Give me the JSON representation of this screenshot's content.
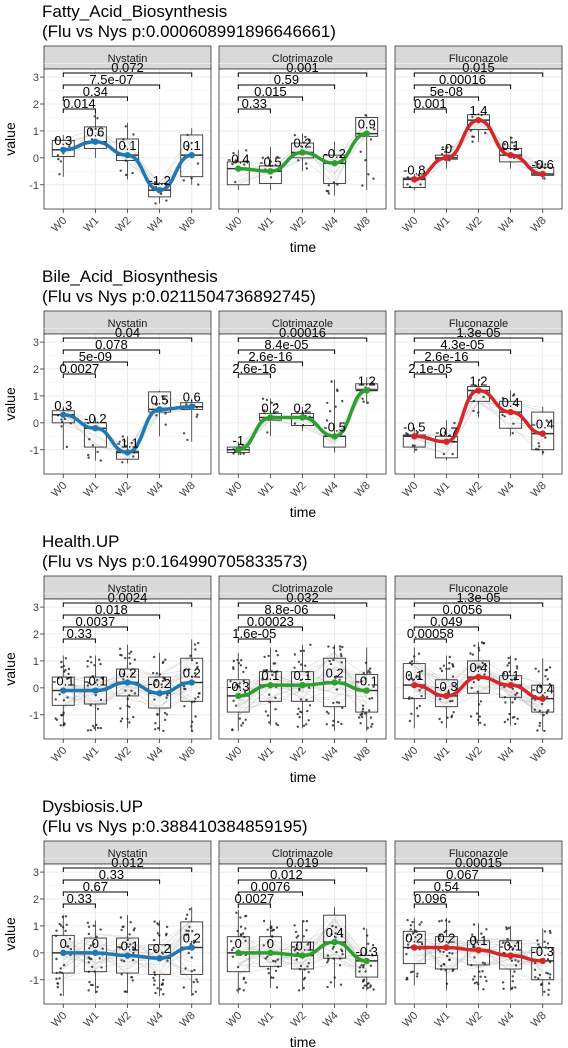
{
  "figure": {
    "xlabel": "time",
    "ylabel": "value",
    "facets": [
      "Nystatin",
      "Clotrimazole",
      "Fluconazole"
    ],
    "colors": {
      "Nystatin": "#1f77b4",
      "Clotrimazole": "#2ca02c",
      "Fluconazole": "#d62728"
    }
  },
  "chart_data": [
    {
      "type": "box",
      "title": "Fatty_Acid_Biosynthesis",
      "subtitle": " (Flu vs Nys p:0.000608991896646661)",
      "categories": [
        "W0",
        "W1",
        "W2",
        "W4",
        "W8"
      ],
      "yticks": [
        -1,
        0,
        1,
        2,
        3
      ],
      "ylim": [
        -1.9,
        3.3
      ],
      "grid": true,
      "panels": [
        {
          "facet": "Nystatin",
          "medians": [
            0.3,
            0.6,
            0.1,
            -1.2,
            0.1
          ],
          "median_labels": [
            "0.3",
            "0.6",
            "0.1",
            "-1.2",
            "0.1"
          ],
          "boxes": [
            [
              0.05,
              0.65
            ],
            [
              0.35,
              1.15
            ],
            [
              -0.1,
              0.7
            ],
            [
              -1.45,
              -0.95
            ],
            [
              -0.7,
              0.85
            ]
          ],
          "whiskers": [
            [
              -0.7,
              0.85
            ],
            [
              0.0,
              1.7
            ],
            [
              -0.8,
              1.3
            ],
            [
              -1.7,
              -0.9
            ],
            [
              -1.0,
              1.1
            ]
          ],
          "pvalues": [
            "0.014",
            "0.34",
            "7.5e-07",
            "0.072"
          ]
        },
        {
          "facet": "Clotrimazole",
          "medians": [
            -0.4,
            -0.5,
            0.2,
            -0.2,
            0.9
          ],
          "median_labels": [
            "-0.4",
            "-0.5",
            "0.2",
            "-0.2",
            "0.9"
          ],
          "boxes": [
            [
              -1.0,
              -0.15
            ],
            [
              -0.95,
              -0.3
            ],
            [
              0.0,
              0.55
            ],
            [
              -0.95,
              0.1
            ],
            [
              0.8,
              1.5
            ]
          ],
          "whiskers": [
            [
              -1.2,
              0.3
            ],
            [
              -1.2,
              0.4
            ],
            [
              -0.5,
              0.9
            ],
            [
              -1.4,
              0.6
            ],
            [
              -1.2,
              1.6
            ]
          ],
          "pvalues": [
            "0.33",
            "0.015",
            "0.59",
            "0.001"
          ]
        },
        {
          "facet": "Fluconazole",
          "medians": [
            -0.8,
            0.0,
            1.4,
            0.1,
            -0.6
          ],
          "median_labels": [
            "-0.8",
            "-0",
            "1.4",
            "0.1",
            "-0.6"
          ],
          "boxes": [
            [
              -1.1,
              -0.75
            ],
            [
              -0.05,
              0.1
            ],
            [
              1.05,
              1.6
            ],
            [
              -0.15,
              0.35
            ],
            [
              -0.65,
              -0.35
            ]
          ],
          "whiskers": [
            [
              -1.2,
              -0.6
            ],
            [
              -0.4,
              0.5
            ],
            [
              0.6,
              1.65
            ],
            [
              -0.4,
              0.8
            ],
            [
              -0.8,
              -0.1
            ]
          ],
          "pvalues": [
            "0.001",
            "5e-08",
            "0.00016",
            "0.015"
          ]
        }
      ]
    },
    {
      "type": "box",
      "title": "Bile_Acid_Biosynthesis",
      "subtitle": " (Flu vs Nys p:0.0211504736892745)",
      "categories": [
        "W0",
        "W1",
        "W2",
        "W4",
        "W8"
      ],
      "yticks": [
        -1,
        0,
        1,
        2,
        3
      ],
      "ylim": [
        -1.9,
        3.3
      ],
      "grid": true,
      "panels": [
        {
          "facet": "Nystatin",
          "medians": [
            0.3,
            -0.2,
            -1.1,
            0.5,
            0.6
          ],
          "median_labels": [
            "0.3",
            "-0.2",
            "-1.1",
            "0.5",
            "0.6"
          ],
          "boxes": [
            [
              0.0,
              0.45
            ],
            [
              -0.9,
              0.0
            ],
            [
              -1.35,
              -1.05
            ],
            [
              0.4,
              1.15
            ],
            [
              0.5,
              0.75
            ]
          ],
          "whiskers": [
            [
              -1.0,
              0.6
            ],
            [
              -1.4,
              0.2
            ],
            [
              -1.5,
              -0.5
            ],
            [
              -0.5,
              1.2
            ],
            [
              -0.7,
              0.9
            ]
          ],
          "pvalues": [
            "0.0027",
            "5e-09",
            "0.078",
            "0.04"
          ]
        },
        {
          "facet": "Clotrimazole",
          "medians": [
            -1.0,
            0.2,
            0.2,
            -0.5,
            1.2
          ],
          "median_labels": [
            "-1",
            "0.2",
            "0.2",
            "-0.5",
            "1.2"
          ],
          "boxes": [
            [
              -1.1,
              -0.9
            ],
            [
              0.1,
              0.35
            ],
            [
              -0.1,
              0.35
            ],
            [
              -0.9,
              -0.5
            ],
            [
              1.25,
              1.45
            ]
          ],
          "whiskers": [
            [
              -1.2,
              -0.7
            ],
            [
              -0.5,
              0.9
            ],
            [
              -0.3,
              0.6
            ],
            [
              -1.1,
              1.6
            ],
            [
              0.7,
              1.7
            ]
          ],
          "pvalues": [
            "2.6e-16",
            "2.6e-16",
            "8.4e-05",
            "0.00016"
          ]
        },
        {
          "facet": "Fluconazole",
          "medians": [
            -0.5,
            -0.7,
            1.2,
            0.4,
            -0.4
          ],
          "median_labels": [
            "-0.5",
            "-0.7",
            "1.2",
            "0.4",
            "-0.4"
          ],
          "boxes": [
            [
              -0.9,
              -0.45
            ],
            [
              -1.3,
              -0.5
            ],
            [
              0.8,
              1.35
            ],
            [
              -0.2,
              0.8
            ],
            [
              -1.0,
              0.4
            ]
          ],
          "whiskers": [
            [
              -1.1,
              -0.2
            ],
            [
              -1.4,
              0.1
            ],
            [
              0.2,
              1.6
            ],
            [
              -0.5,
              1.2
            ],
            [
              -1.2,
              0.6
            ]
          ],
          "pvalues": [
            "2.1e-05",
            "2.6e-16",
            "4.3e-05",
            "1.3e-05"
          ]
        }
      ]
    },
    {
      "type": "box",
      "title": "Health.UP",
      "subtitle": " (Flu vs Nys p:0.164990705833573)",
      "categories": [
        "W0",
        "W1",
        "W2",
        "W4",
        "W8"
      ],
      "yticks": [
        -1,
        0,
        1,
        2,
        3
      ],
      "ylim": [
        -1.9,
        3.3
      ],
      "grid": true,
      "panels": [
        {
          "facet": "Nystatin",
          "medians": [
            -0.1,
            -0.1,
            0.2,
            -0.2,
            0.2
          ],
          "median_labels": [
            "-0.1",
            "-0.1",
            "0.2",
            "-0.2",
            "0.2"
          ],
          "boxes": [
            [
              -0.65,
              0.4
            ],
            [
              -0.6,
              0.4
            ],
            [
              -0.3,
              0.7
            ],
            [
              -0.75,
              0.4
            ],
            [
              -0.5,
              1.1
            ]
          ],
          "whiskers": [
            [
              -1.4,
              1.2
            ],
            [
              -1.6,
              1.2
            ],
            [
              -1.5,
              1.6
            ],
            [
              -1.6,
              1.3
            ],
            [
              -1.6,
              1.8
            ]
          ],
          "pvalues": [
            "0.33",
            "0.0037",
            "0.018",
            "0.0024"
          ]
        },
        {
          "facet": "Clotrimazole",
          "medians": [
            -0.3,
            0.1,
            0.1,
            0.2,
            -0.1
          ],
          "median_labels": [
            "-0.3",
            "0.1",
            "0.1",
            "0.2",
            "-0.1"
          ],
          "boxes": [
            [
              -0.9,
              0.3
            ],
            [
              -0.5,
              0.6
            ],
            [
              -0.5,
              0.6
            ],
            [
              -0.7,
              1.1
            ],
            [
              -0.9,
              0.5
            ]
          ],
          "whiskers": [
            [
              -1.6,
              1.3
            ],
            [
              -1.4,
              1.5
            ],
            [
              -1.5,
              1.6
            ],
            [
              -1.6,
              1.6
            ],
            [
              -1.6,
              1.5
            ]
          ],
          "pvalues": [
            "1.6e-05",
            "0.00023",
            "8.8e-06",
            "0.032"
          ]
        },
        {
          "facet": "Fluconazole",
          "medians": [
            0.1,
            -0.3,
            0.4,
            0.1,
            -0.4
          ],
          "median_labels": [
            "0.1",
            "-0.3",
            "0.4",
            "0.1",
            "-0.4"
          ],
          "boxes": [
            [
              -0.4,
              0.9
            ],
            [
              -0.7,
              0.3
            ],
            [
              -0.2,
              1.0
            ],
            [
              -0.35,
              0.45
            ],
            [
              -0.9,
              0.1
            ]
          ],
          "whiskers": [
            [
              -1.5,
              1.5
            ],
            [
              -1.5,
              1.2
            ],
            [
              -1.4,
              1.7
            ],
            [
              -1.4,
              1.2
            ],
            [
              -1.6,
              1.1
            ]
          ],
          "pvalues": [
            "0.00058",
            "0.049",
            "0.0056",
            "1.3e-05"
          ]
        }
      ]
    },
    {
      "type": "box",
      "title": "Dysbiosis.UP",
      "subtitle": " (Flu vs Nys p:0.388410384859195)",
      "categories": [
        "W0",
        "W1",
        "W2",
        "W4",
        "W8"
      ],
      "yticks": [
        -1,
        0,
        1,
        2,
        3
      ],
      "ylim": [
        -1.9,
        3.3
      ],
      "grid": true,
      "panels": [
        {
          "facet": "Nystatin",
          "medians": [
            0.0,
            0.0,
            -0.1,
            -0.2,
            0.2
          ],
          "median_labels": [
            "0",
            "0",
            "-0.1",
            "-0.2",
            "0.2"
          ],
          "boxes": [
            [
              -0.75,
              0.65
            ],
            [
              -0.7,
              0.55
            ],
            [
              -0.75,
              0.55
            ],
            [
              -0.8,
              0.3
            ],
            [
              -0.8,
              1.15
            ]
          ],
          "whiskers": [
            [
              -1.6,
              1.4
            ],
            [
              -1.5,
              1.2
            ],
            [
              -1.5,
              1.4
            ],
            [
              -1.6,
              1.2
            ],
            [
              -1.6,
              1.7
            ]
          ],
          "pvalues": [
            "0.33",
            "0.67",
            "0.33",
            "0.012"
          ]
        },
        {
          "facet": "Clotrimazole",
          "medians": [
            0.0,
            0.0,
            -0.1,
            0.4,
            -0.3
          ],
          "median_labels": [
            "0",
            "0",
            "-0.1",
            "0.4",
            "-0.3"
          ],
          "boxes": [
            [
              -0.7,
              0.6
            ],
            [
              -0.5,
              0.6
            ],
            [
              -0.6,
              0.4
            ],
            [
              -0.2,
              1.4
            ],
            [
              -0.9,
              -0.1
            ]
          ],
          "whiskers": [
            [
              -1.5,
              1.6
            ],
            [
              -1.3,
              1.2
            ],
            [
              -1.4,
              1.2
            ],
            [
              -1.3,
              1.7
            ],
            [
              -1.4,
              0.9
            ]
          ],
          "pvalues": [
            "0.0027",
            "0.0076",
            "0.012",
            "0.019"
          ]
        },
        {
          "facet": "Fluconazole",
          "medians": [
            0.2,
            0.2,
            0.1,
            -0.1,
            -0.3
          ],
          "median_labels": [
            "0.2",
            "0.2",
            "0.1",
            "-0.1",
            "-0.3"
          ],
          "boxes": [
            [
              -0.4,
              0.8
            ],
            [
              -0.6,
              0.6
            ],
            [
              -0.45,
              0.45
            ],
            [
              -0.6,
              0.45
            ],
            [
              -1.0,
              0.2
            ]
          ],
          "whiskers": [
            [
              -1.2,
              1.3
            ],
            [
              -1.4,
              1.3
            ],
            [
              -1.4,
              1.1
            ],
            [
              -1.4,
              1.0
            ],
            [
              -1.6,
              0.9
            ]
          ],
          "pvalues": [
            "0.096",
            "0.54",
            "0.067",
            "0.00015"
          ]
        }
      ]
    }
  ]
}
